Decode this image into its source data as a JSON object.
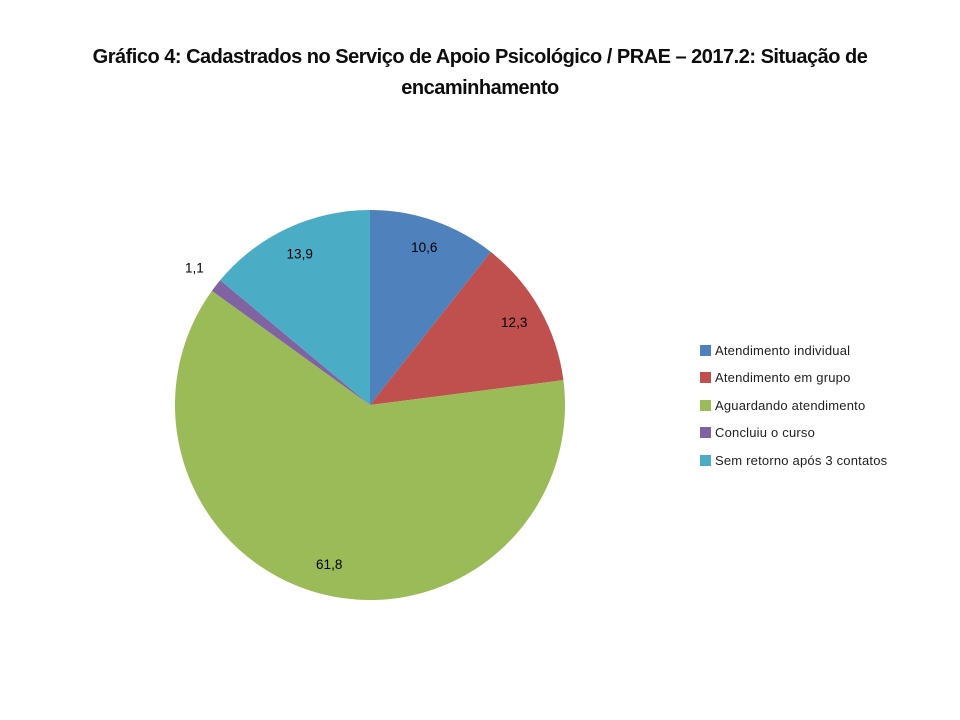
{
  "title": {
    "line1": "Gráfico 4: Cadastrados no Serviço de Apoio Psicológico / PRAE – 2017.2: Situação de",
    "line2": "encaminhamento"
  },
  "chart_data": {
    "type": "pie",
    "title": "Gráfico 4: Cadastrados no Serviço de Apoio Psicológico / PRAE – 2017.2: Situação de encaminhamento",
    "categories": [
      "Atendimento individual",
      "Atendimento em grupo",
      "Aguardando atendimento",
      "Concluiu o curso",
      "Sem retorno após 3 contatos"
    ],
    "values": [
      10.6,
      12.3,
      61.8,
      1.1,
      13.9
    ],
    "value_labels": [
      "10,6",
      "12,3",
      "61,8",
      "1,1",
      "13,9"
    ],
    "colors": [
      "#4F81BD",
      "#C0504D",
      "#9BBB59",
      "#8064A2",
      "#4BACC6"
    ],
    "start_angle_deg": 0,
    "direction": "clockwise",
    "legend_position": "right",
    "label_color": "#000000",
    "background": "#FFFFFF"
  }
}
